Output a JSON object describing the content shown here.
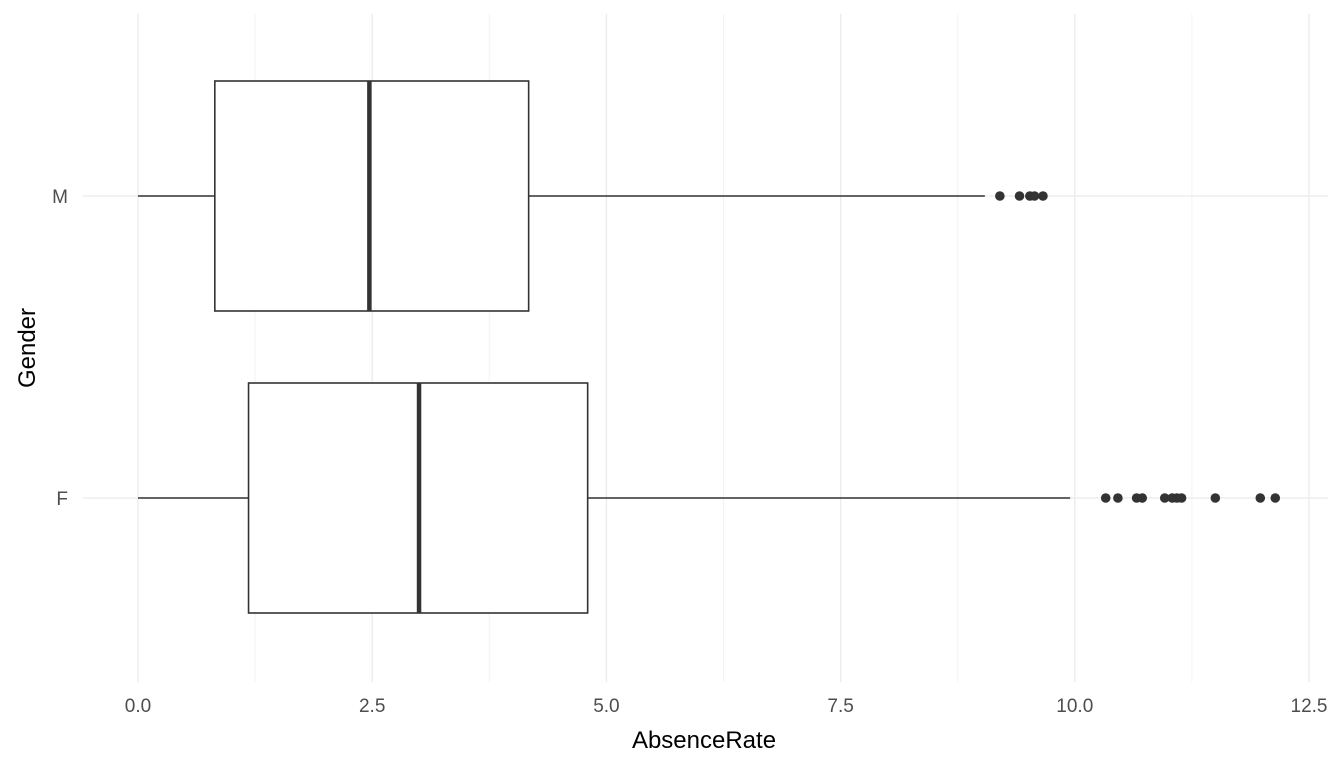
{
  "chart_data": {
    "type": "boxplot",
    "orientation": "horizontal",
    "xlabel": "AbsenceRate",
    "ylabel": "Gender",
    "xlim": [
      -0.25,
      12.75
    ],
    "x_ticks": [
      0.0,
      2.5,
      5.0,
      7.5,
      10.0,
      12.5
    ],
    "x_tick_labels": [
      "0.0",
      "2.5",
      "5.0",
      "7.5",
      "10.0",
      "12.5"
    ],
    "grid": true,
    "categories": [
      "M",
      "F"
    ],
    "series": [
      {
        "category": "M",
        "whisker_low": 0.0,
        "q1": 0.82,
        "median": 2.47,
        "q3": 4.17,
        "whisker_high": 9.04,
        "outliers": [
          9.2,
          9.41,
          9.52,
          9.57,
          9.66
        ]
      },
      {
        "category": "F",
        "whisker_low": 0.0,
        "q1": 1.18,
        "median": 3.0,
        "q3": 4.8,
        "whisker_high": 9.95,
        "outliers": [
          10.33,
          10.46,
          10.66,
          10.72,
          10.96,
          11.04,
          11.09,
          11.14,
          11.5,
          11.98,
          12.14
        ]
      }
    ],
    "colors": {
      "box_outline": "#333333",
      "median": "#333333",
      "outlier": "#333333",
      "grid_major": "#ebebeb",
      "grid_minor": "#f3f3f3",
      "tick_text": "#4d4d4d",
      "title_text": "#000000"
    }
  }
}
